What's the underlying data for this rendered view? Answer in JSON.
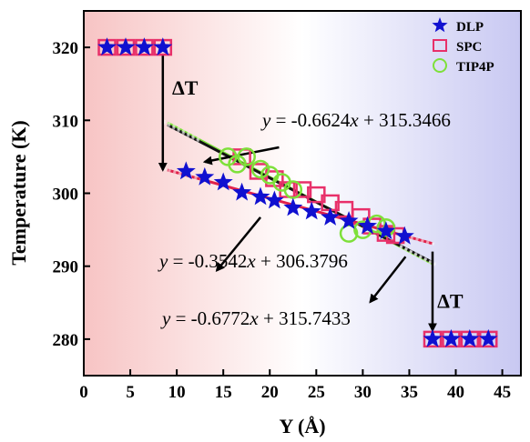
{
  "chart_data": {
    "type": "scatter",
    "xlabel": "Y (Å)",
    "ylabel": "Temperature (K)",
    "xlim": [
      0,
      47
    ],
    "ylim": [
      275,
      325
    ],
    "xticks": [
      0,
      5,
      10,
      15,
      20,
      25,
      30,
      35,
      40,
      45
    ],
    "yticks": [
      280,
      290,
      300,
      310,
      320
    ],
    "legend_position": "top-right",
    "background_gradient": [
      "#f7c4c4",
      "#ffffff",
      "#c8c8f2"
    ],
    "series": [
      {
        "name": "DLP",
        "marker": "star",
        "color": "#1010d0",
        "points": [
          [
            2.5,
            320
          ],
          [
            4.5,
            320
          ],
          [
            6.5,
            320
          ],
          [
            8.5,
            320
          ],
          [
            11,
            303
          ],
          [
            13,
            302.2
          ],
          [
            15,
            301.5
          ],
          [
            17,
            300.1
          ],
          [
            19,
            299.5
          ],
          [
            20.5,
            299
          ],
          [
            22.5,
            298
          ],
          [
            24.5,
            297.5
          ],
          [
            26.5,
            296.7
          ],
          [
            28.5,
            296.2
          ],
          [
            30.5,
            295.5
          ],
          [
            32.5,
            294.8
          ],
          [
            34.5,
            294.1
          ],
          [
            37.5,
            280
          ],
          [
            39.5,
            280
          ],
          [
            41.5,
            280
          ],
          [
            43.5,
            280
          ]
        ]
      },
      {
        "name": "SPC",
        "marker": "square",
        "color": "#e8306a",
        "points": [
          [
            2.5,
            320
          ],
          [
            4.5,
            320
          ],
          [
            6.5,
            320
          ],
          [
            8.5,
            320
          ],
          [
            17,
            305
          ],
          [
            18.8,
            303
          ],
          [
            20.5,
            302
          ],
          [
            22,
            300.5
          ],
          [
            23.5,
            300.5
          ],
          [
            25,
            299.8
          ],
          [
            26.5,
            298.7
          ],
          [
            28,
            297.8
          ],
          [
            29.8,
            296.8
          ],
          [
            31,
            295.5
          ],
          [
            32.5,
            294.5
          ],
          [
            33.5,
            294.2
          ],
          [
            37.5,
            280
          ],
          [
            39.5,
            280
          ],
          [
            41.5,
            280
          ],
          [
            43.5,
            280
          ]
        ]
      },
      {
        "name": "TIP4P",
        "marker": "circle",
        "color": "#7ee03a",
        "points": [
          [
            15.5,
            305
          ],
          [
            16.5,
            304
          ],
          [
            17.5,
            305
          ],
          [
            19,
            303.3
          ],
          [
            20,
            302.5
          ],
          [
            21.3,
            301.5
          ],
          [
            22.5,
            300.5
          ],
          [
            28.5,
            294.5
          ],
          [
            30,
            295
          ],
          [
            31.5,
            295.8
          ],
          [
            32.5,
            295.3
          ]
        ]
      }
    ],
    "fits": [
      {
        "label_prefix": "y",
        "label_rest": " = -0.6624",
        "label_var": "x",
        "label_tail": " + 315.3466",
        "slope": -0.6624,
        "intercept": 315.3466,
        "x_range": [
          9,
          37.5
        ],
        "color": "#111111",
        "dashed": true
      },
      {
        "label_prefix": "y",
        "label_rest": " = -0.3542",
        "label_var": "x",
        "label_tail": " + 306.3796",
        "slope": -0.3542,
        "intercept": 306.3796,
        "x_range": [
          9,
          37.5
        ],
        "color": "#e0204a",
        "dashed": false
      },
      {
        "label_prefix": "y",
        "label_rest": " = -0.6772",
        "label_var": "x",
        "label_tail": " + 315.7433",
        "slope": -0.6772,
        "intercept": 315.7433,
        "x_range": [
          9,
          37.5
        ],
        "color": "#7ee03a",
        "dashed": false
      }
    ],
    "annotations": {
      "delta_label": "ΔT"
    }
  }
}
